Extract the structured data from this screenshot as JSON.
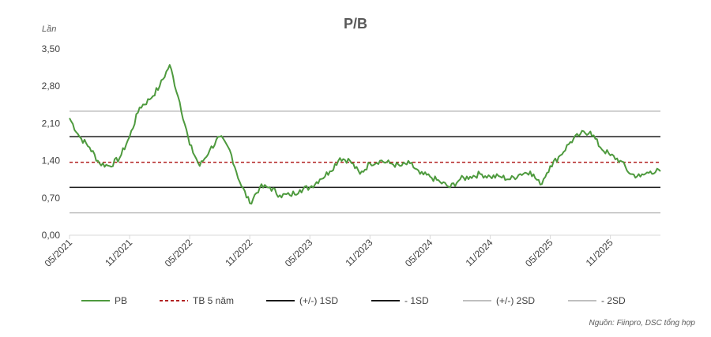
{
  "chart_data": {
    "type": "line",
    "title": "P/B",
    "unit_label": "Lần",
    "source": "Nguồn: Fiinpro, DSC tổng hợp",
    "ylim": [
      0,
      3.5
    ],
    "y_ticks": [
      "0,00",
      "0,70",
      "1,40",
      "2,10",
      "2,80",
      "3,50"
    ],
    "x_ticks": [
      "05/2021",
      "11/2021",
      "05/2022",
      "11/2022",
      "05/2023",
      "11/2023",
      "05/2024",
      "11/2024",
      "05/2025",
      "11/2025"
    ],
    "x_range": [
      "2021-05",
      "2026-04"
    ],
    "legend_position": "bottom",
    "colors": {
      "pb": "#4e9a3e",
      "mean": "#b22222",
      "sd1": "#1a1a1a",
      "sd2": "#bfbfbf",
      "axis": "#d9d9d9"
    },
    "series": [
      {
        "name": "PB",
        "style": "solid",
        "x": [
          "2021-05",
          "2021-06",
          "2021-07",
          "2021-08",
          "2021-09",
          "2021-10",
          "2021-11",
          "2021-12",
          "2022-01",
          "2022-02",
          "2022-03",
          "2022-04",
          "2022-05",
          "2022-06",
          "2022-07",
          "2022-08",
          "2022-09",
          "2022-10",
          "2022-11",
          "2022-12",
          "2023-01",
          "2023-02",
          "2023-03",
          "2023-04",
          "2023-05",
          "2023-06",
          "2023-07",
          "2023-08",
          "2023-09",
          "2023-10",
          "2023-11",
          "2023-12",
          "2024-01",
          "2024-02",
          "2024-03",
          "2024-04",
          "2024-05",
          "2024-06",
          "2024-07",
          "2024-08",
          "2024-09",
          "2024-10",
          "2024-11",
          "2024-12",
          "2025-01",
          "2025-02",
          "2025-03",
          "2025-04",
          "2025-05",
          "2025-06",
          "2025-07",
          "2025-08",
          "2025-09",
          "2025-10",
          "2025-11",
          "2025-12",
          "2026-01",
          "2026-02",
          "2026-03",
          "2026-04"
        ],
        "values": [
          2.2,
          1.85,
          1.65,
          1.35,
          1.3,
          1.45,
          1.85,
          2.4,
          2.55,
          2.8,
          3.2,
          2.5,
          1.7,
          1.3,
          1.6,
          1.85,
          1.6,
          1.0,
          0.6,
          0.9,
          0.9,
          0.75,
          0.75,
          0.85,
          0.9,
          1.05,
          1.2,
          1.45,
          1.4,
          1.15,
          1.35,
          1.4,
          1.35,
          1.3,
          1.35,
          1.15,
          1.1,
          1.0,
          0.9,
          1.05,
          1.1,
          1.15,
          1.1,
          1.1,
          1.05,
          1.15,
          1.2,
          0.95,
          1.3,
          1.5,
          1.75,
          1.9,
          1.95,
          1.65,
          1.5,
          1.4,
          1.15,
          1.1,
          1.2,
          1.2
        ]
      },
      {
        "name": "TB 5 năm",
        "style": "dashed",
        "value": 1.37
      },
      {
        "name": "(+/-) 1SD",
        "style": "solid",
        "value": 1.85
      },
      {
        "name": "- 1SD",
        "style": "solid",
        "value": 0.9
      },
      {
        "name": "(+/-) 2SD",
        "style": "solid",
        "value": 2.33
      },
      {
        "name": "- 2SD",
        "style": "solid",
        "value": 0.42
      }
    ]
  }
}
